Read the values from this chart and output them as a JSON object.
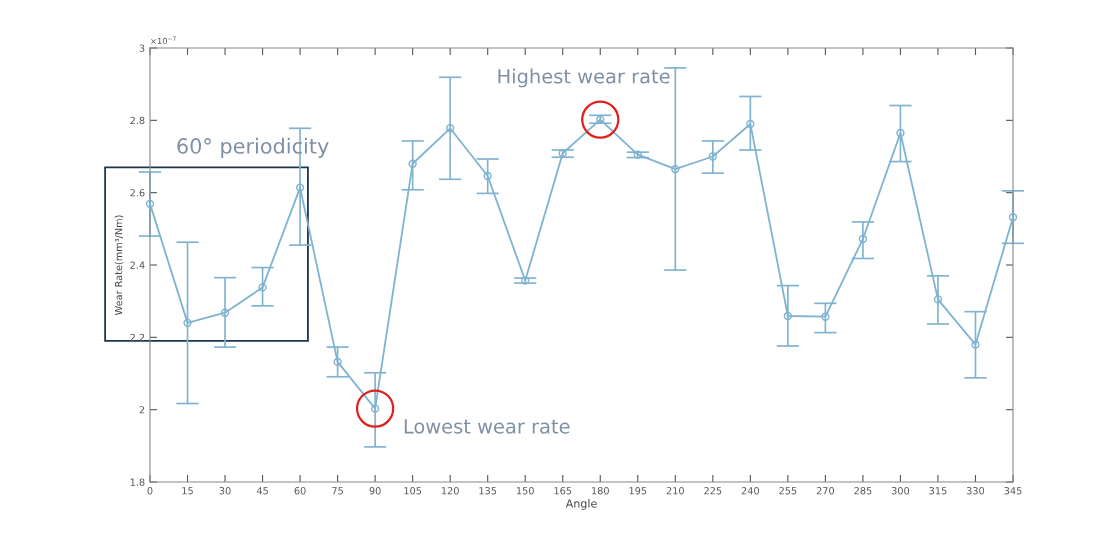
{
  "chart_data": {
    "type": "line",
    "xlabel": "Angle",
    "ylabel": "Wear Rate(mm³/Nm)",
    "x": [
      0,
      15,
      30,
      45,
      60,
      75,
      90,
      105,
      120,
      135,
      150,
      165,
      180,
      195,
      210,
      225,
      240,
      255,
      270,
      285,
      300,
      315,
      330,
      345
    ],
    "series": [
      {
        "color": "#7fb3cf",
        "marker": "circle",
        "values": [
          2.569,
          2.24,
          2.268,
          2.338,
          2.614,
          2.132,
          2.003,
          2.68,
          2.778,
          2.646,
          2.357,
          2.709,
          2.802,
          2.705,
          2.665,
          2.7,
          2.79,
          2.259,
          2.257,
          2.472,
          2.765,
          2.305,
          2.18,
          2.532
        ],
        "errors": [
          [
            2.48,
            2.657
          ],
          [
            2.017,
            2.463
          ],
          [
            2.173,
            2.365
          ],
          [
            2.287,
            2.393
          ],
          [
            2.455,
            2.778
          ],
          [
            2.091,
            2.173
          ],
          [
            1.897,
            2.102
          ],
          [
            2.608,
            2.743
          ],
          [
            2.637,
            2.919
          ],
          [
            2.598,
            2.693
          ],
          [
            2.35,
            2.364
          ],
          [
            2.698,
            2.718
          ],
          [
            2.792,
            2.814
          ],
          [
            2.697,
            2.712
          ],
          [
            2.386,
            2.945
          ],
          [
            2.654,
            2.743
          ],
          [
            2.718,
            2.866
          ],
          [
            2.176,
            2.343
          ],
          [
            2.213,
            2.294
          ],
          [
            2.418,
            2.519
          ],
          [
            2.686,
            2.841
          ],
          [
            2.237,
            2.37
          ],
          [
            2.088,
            2.271
          ],
          [
            2.46,
            2.605
          ]
        ]
      }
    ],
    "xlim": [
      0,
      345
    ],
    "xticks": [
      0,
      15,
      30,
      45,
      60,
      75,
      90,
      105,
      120,
      135,
      150,
      165,
      180,
      195,
      210,
      225,
      240,
      255,
      270,
      285,
      300,
      315,
      330,
      345
    ],
    "ylim": [
      1.8,
      3.0
    ],
    "yticks": [
      1.8,
      2,
      2.2,
      2.4,
      2.6,
      2.8,
      3
    ],
    "grid": false,
    "legend": false,
    "line_style": "solid",
    "annotations": [
      "×10$^{−7}$",
      "60° periodicity",
      {
        "text": "Highest wear rate",
        "x": 180,
        "y": 2.802
      },
      {
        "text": "Lowest wear rate",
        "x": 90,
        "y": 2.003
      }
    ]
  }
}
